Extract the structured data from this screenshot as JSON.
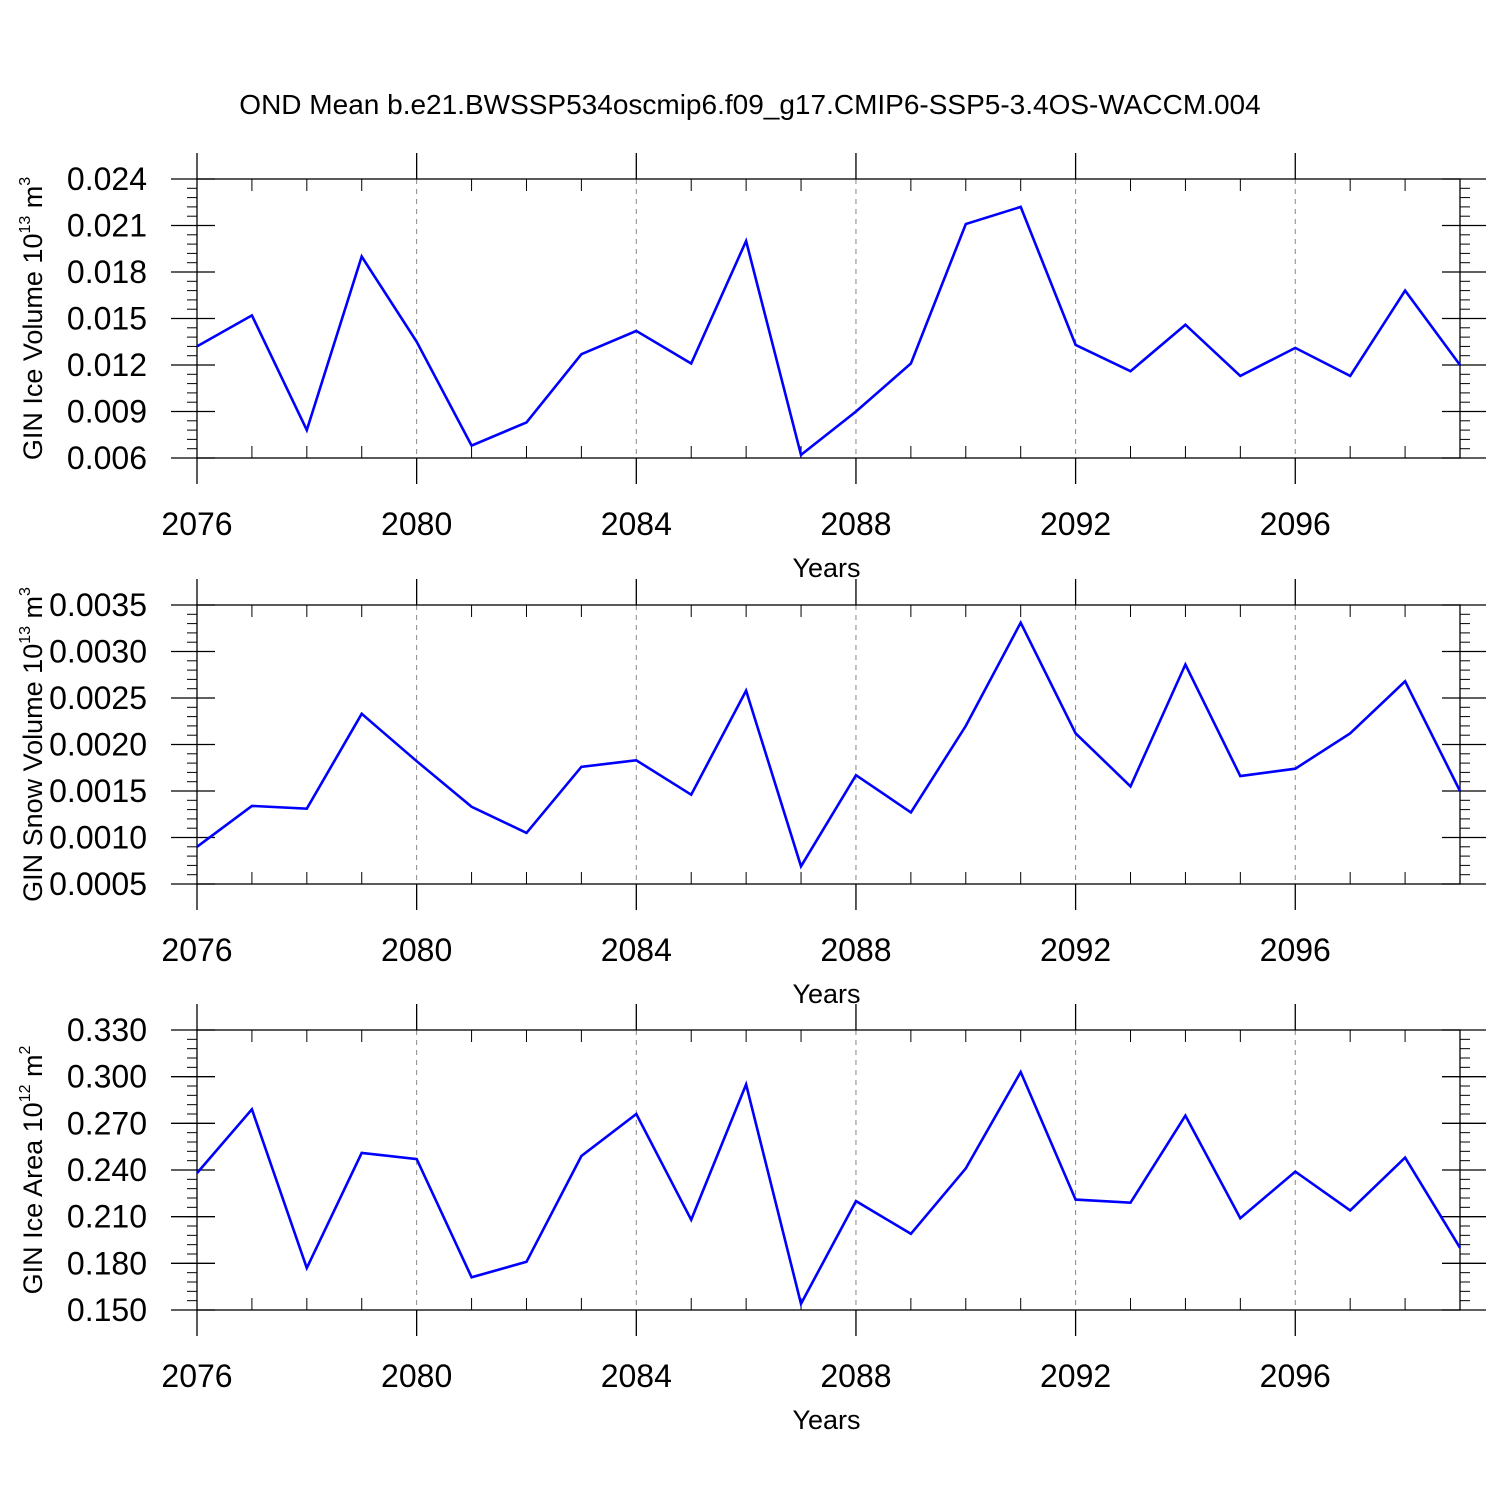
{
  "title": "OND Mean b.e21.BWSSP534oscmip6.f09_g17.CMIP6-SSP5-3.4OS-WACCM.004",
  "colors": {
    "line": "#0000ff",
    "axis": "#000000",
    "grid": "#888888"
  },
  "chart_data": [
    {
      "type": "line",
      "ylabel": {
        "text": "GIN Ice Volume 10",
        "exponent": "13",
        "unit": " m",
        "unit_exponent": "3"
      },
      "xlabel": "Years",
      "x": [
        2076,
        2077,
        2078,
        2079,
        2080,
        2081,
        2082,
        2083,
        2084,
        2085,
        2086,
        2087,
        2088,
        2089,
        2090,
        2091,
        2092,
        2093,
        2094,
        2095,
        2096,
        2097,
        2098,
        2099
      ],
      "values": [
        0.0132,
        0.0152,
        0.0078,
        0.019,
        0.0135,
        0.0068,
        0.0083,
        0.0127,
        0.0142,
        0.0121,
        0.02,
        0.0062,
        0.009,
        0.0121,
        0.0211,
        0.0222,
        0.0133,
        0.0116,
        0.0146,
        0.0113,
        0.0131,
        0.0113,
        0.0168,
        0.012
      ],
      "xlim": [
        2076,
        2099
      ],
      "ylim": [
        0.006,
        0.024
      ],
      "xticks": [
        2076,
        2080,
        2084,
        2088,
        2092,
        2096
      ],
      "xtick_labels": [
        "2076",
        "2080",
        "2084",
        "2088",
        "2092",
        "2096"
      ],
      "yticks": [
        0.006,
        0.009,
        0.012,
        0.015,
        0.018,
        0.021,
        0.024
      ],
      "ytick_labels": [
        "0.006",
        "0.009",
        "0.012",
        "0.015",
        "0.018",
        "0.021",
        "0.024"
      ],
      "y_minor_step": 0.0006,
      "grid": "vertical dashed at major x ticks"
    },
    {
      "type": "line",
      "ylabel": {
        "text": "GIN Snow Volume 10",
        "exponent": "13",
        "unit": " m",
        "unit_exponent": "3"
      },
      "xlabel": "Years",
      "x": [
        2076,
        2077,
        2078,
        2079,
        2080,
        2081,
        2082,
        2083,
        2084,
        2085,
        2086,
        2087,
        2088,
        2089,
        2090,
        2091,
        2092,
        2093,
        2094,
        2095,
        2096,
        2097,
        2098,
        2099
      ],
      "values": [
        0.0009,
        0.00134,
        0.00131,
        0.00233,
        0.00182,
        0.00133,
        0.00105,
        0.00176,
        0.00183,
        0.00146,
        0.00258,
        0.00069,
        0.00167,
        0.00127,
        0.0022,
        0.00331,
        0.00212,
        0.00155,
        0.00286,
        0.00166,
        0.00174,
        0.00212,
        0.00268,
        0.0015
      ],
      "xlim": [
        2076,
        2099
      ],
      "ylim": [
        0.0005,
        0.0035
      ],
      "xticks": [
        2076,
        2080,
        2084,
        2088,
        2092,
        2096
      ],
      "xtick_labels": [
        "2076",
        "2080",
        "2084",
        "2088",
        "2092",
        "2096"
      ],
      "yticks": [
        0.0005,
        0.001,
        0.0015,
        0.002,
        0.0025,
        0.003,
        0.0035
      ],
      "ytick_labels": [
        "0.0005",
        "0.0010",
        "0.0015",
        "0.0020",
        "0.0025",
        "0.0030",
        "0.0035"
      ],
      "y_minor_step": 0.0001,
      "grid": "vertical dashed at major x ticks"
    },
    {
      "type": "line",
      "ylabel": {
        "text": "GIN Ice Area 10",
        "exponent": "12",
        "unit": " m",
        "unit_exponent": "2"
      },
      "xlabel": "Years",
      "x": [
        2076,
        2077,
        2078,
        2079,
        2080,
        2081,
        2082,
        2083,
        2084,
        2085,
        2086,
        2087,
        2088,
        2089,
        2090,
        2091,
        2092,
        2093,
        2094,
        2095,
        2096,
        2097,
        2098,
        2099
      ],
      "values": [
        0.238,
        0.279,
        0.177,
        0.251,
        0.247,
        0.171,
        0.181,
        0.249,
        0.276,
        0.208,
        0.295,
        0.154,
        0.22,
        0.199,
        0.241,
        0.303,
        0.221,
        0.219,
        0.275,
        0.209,
        0.239,
        0.214,
        0.248,
        0.19
      ],
      "xlim": [
        2076,
        2099
      ],
      "ylim": [
        0.15,
        0.33
      ],
      "xticks": [
        2076,
        2080,
        2084,
        2088,
        2092,
        2096
      ],
      "xtick_labels": [
        "2076",
        "2080",
        "2084",
        "2088",
        "2092",
        "2096"
      ],
      "yticks": [
        0.15,
        0.18,
        0.21,
        0.24,
        0.27,
        0.3,
        0.33
      ],
      "ytick_labels": [
        "0.150",
        "0.180",
        "0.210",
        "0.240",
        "0.270",
        "0.300",
        "0.330"
      ],
      "y_minor_step": 0.006,
      "grid": "vertical dashed at major x ticks"
    }
  ]
}
